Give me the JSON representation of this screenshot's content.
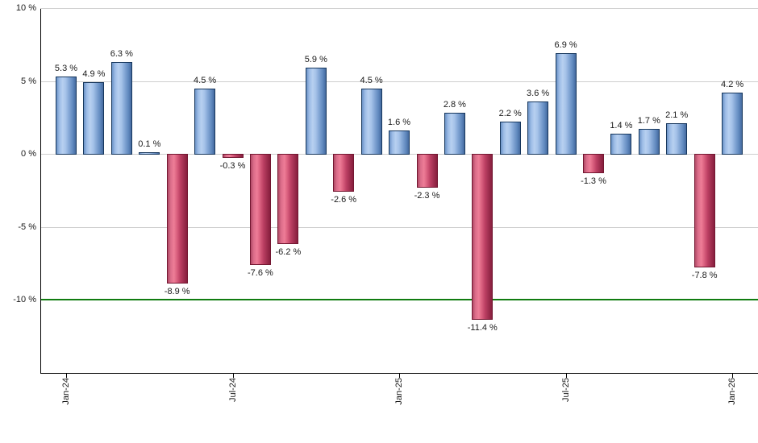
{
  "chart_data": {
    "type": "bar",
    "title": "",
    "unit": "%",
    "values": [
      5.3,
      4.9,
      6.3,
      0.1,
      -8.9,
      4.5,
      -0.3,
      -7.6,
      -6.2,
      5.9,
      -2.6,
      4.5,
      1.6,
      -2.3,
      2.8,
      -11.4,
      2.2,
      3.6,
      6.9,
      -1.3,
      1.4,
      1.7,
      2.1,
      -7.8,
      4.2
    ],
    "bar_labels": [
      "5.3 %",
      "4.9 %",
      "6.3 %",
      "0.1 %",
      "-8.9 %",
      "4.5 %",
      "-0.3 %",
      "-7.6 %",
      "-6.2 %",
      "5.9 %",
      "-2.6 %",
      "4.5 %",
      "1.6 %",
      "-2.3 %",
      "2.8 %",
      "-11.4 %",
      "2.2 %",
      "3.6 %",
      "6.9 %",
      "-1.3 %",
      "1.4 %",
      "1.7 %",
      "2.1 %",
      "-7.8 %",
      "4.2 %"
    ],
    "x_axis": {
      "tick_indices": [
        0,
        6,
        12,
        18,
        24
      ],
      "tick_labels": [
        "Jan-24",
        "Jul-24",
        "Jan-25",
        "Jul-25",
        "Jan-26"
      ]
    },
    "y_axis": {
      "tick_values": [
        10,
        5,
        0,
        -5,
        -10
      ],
      "tick_labels": [
        "10 %",
        "5 %",
        "0 %",
        "-5 %",
        "-10 %"
      ],
      "min": -15,
      "max": 10
    },
    "grid": true,
    "legend_position": "none",
    "reference_line": {
      "value": -10,
      "color": "#107c10"
    },
    "colors": {
      "positive_fill": "#9cbbe6",
      "positive_border": "#16365c",
      "negative_fill": "#d95f7e",
      "negative_border": "#731731",
      "gridline": "#cfcfcf",
      "axis": "#000000",
      "label_text": "#1a1a1a"
    }
  }
}
